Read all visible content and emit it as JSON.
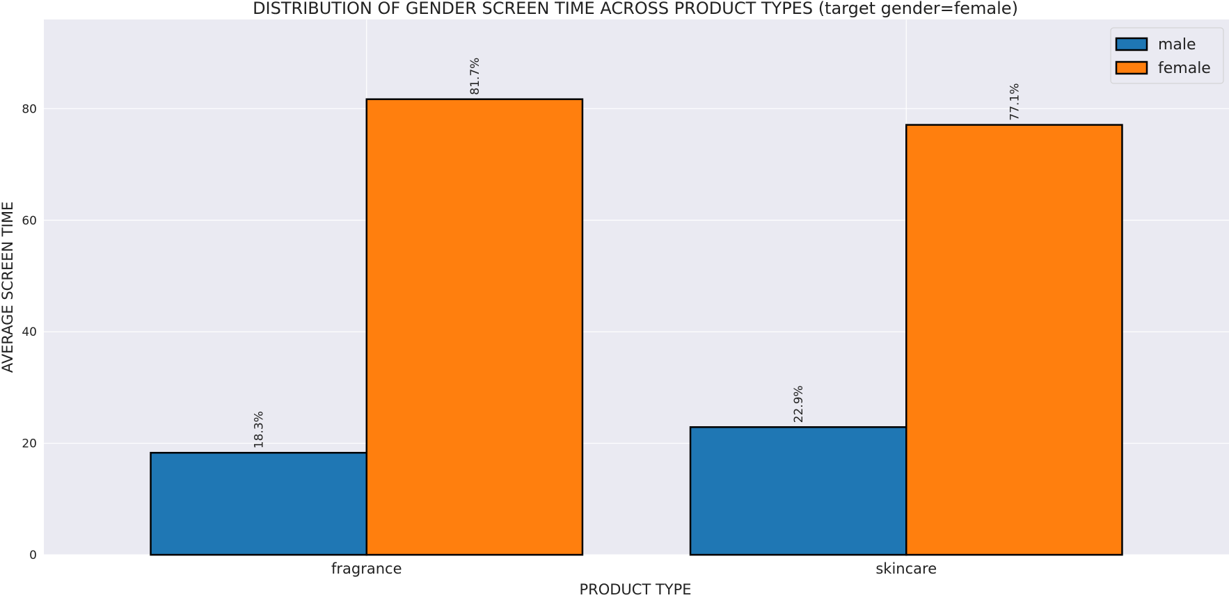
{
  "chart_data": {
    "type": "bar",
    "title": "DISTRIBUTION OF GENDER SCREEN TIME ACROSS PRODUCT TYPES (target gender=female)",
    "xlabel": "PRODUCT TYPE",
    "ylabel": "AVERAGE SCREEN TIME",
    "categories": [
      "fragrance",
      "skincare"
    ],
    "series": [
      {
        "name": "male",
        "values": [
          18.3,
          22.9
        ],
        "labels": [
          "18.3%",
          "22.9%"
        ],
        "color": "#1f77b4"
      },
      {
        "name": "female",
        "values": [
          81.7,
          77.1
        ],
        "labels": [
          "81.7%",
          "77.1%"
        ],
        "color": "#ff7f0e"
      }
    ],
    "ylim": [
      0,
      96
    ],
    "yticks": [
      0,
      20,
      40,
      60,
      80
    ],
    "grid": true,
    "legend_position": "top-right",
    "background": "#eaeaf2",
    "gridline_color": "#ffffff",
    "bar_edge_color": "#000000"
  }
}
